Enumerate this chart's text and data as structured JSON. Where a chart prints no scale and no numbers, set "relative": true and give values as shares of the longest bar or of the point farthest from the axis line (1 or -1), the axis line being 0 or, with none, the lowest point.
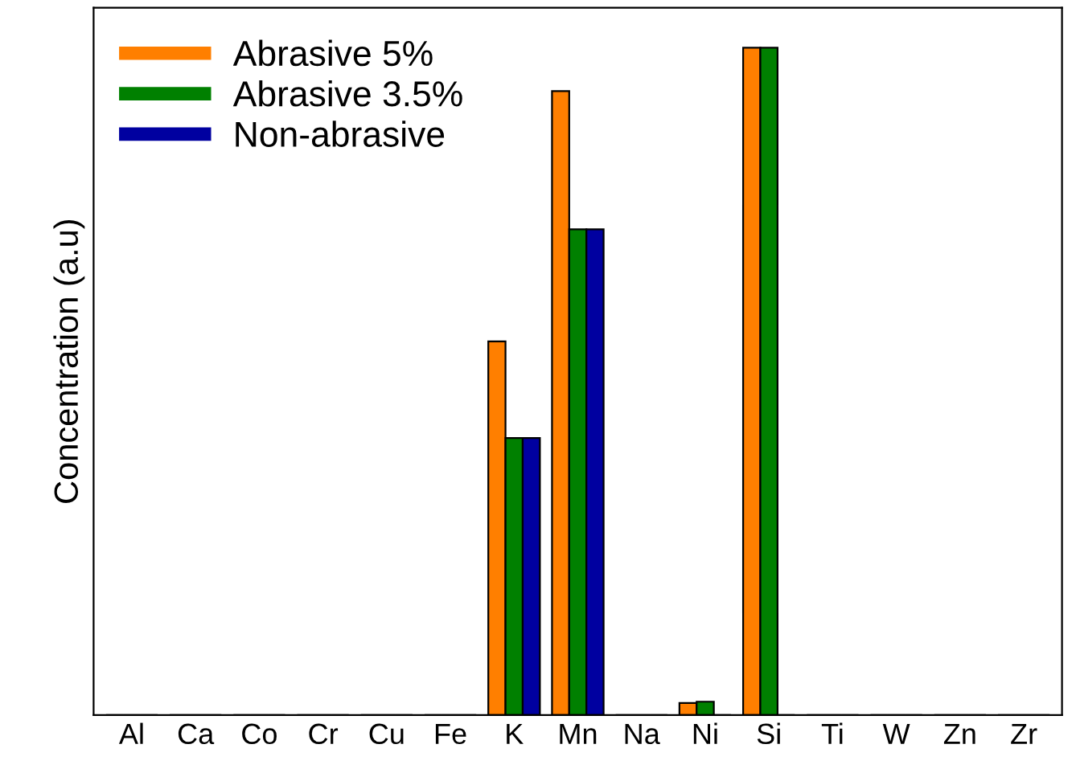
{
  "chart_data": {
    "type": "bar",
    "relative": true,
    "ylabel": "Concentration (a.u)",
    "categories": [
      "Al",
      "Ca",
      "Co",
      "Cr",
      "Cu",
      "Fe",
      "K",
      "Mn",
      "Na",
      "Ni",
      "Si",
      "Ti",
      "W",
      "Zn",
      "Zr"
    ],
    "series": [
      {
        "name": "Abrasive 5%",
        "color": "#ff7f00",
        "values": [
          0,
          0,
          0,
          0,
          0,
          0,
          0.56,
          0.935,
          0,
          0.018,
          1,
          0,
          0,
          0,
          0
        ]
      },
      {
        "name": "Abrasive 3.5%",
        "color": "#008000",
        "values": [
          0,
          0,
          0,
          0,
          0,
          0,
          0.415,
          0.728,
          0,
          0.02,
          1,
          0,
          0,
          0,
          0
        ]
      },
      {
        "name": "Non-abrasive",
        "color": "#0000a0",
        "values": [
          0,
          0,
          0,
          0,
          0,
          0,
          0.415,
          0.728,
          0,
          0,
          0,
          0,
          0,
          0,
          0
        ]
      }
    ],
    "legend": "top left",
    "grid": false
  }
}
